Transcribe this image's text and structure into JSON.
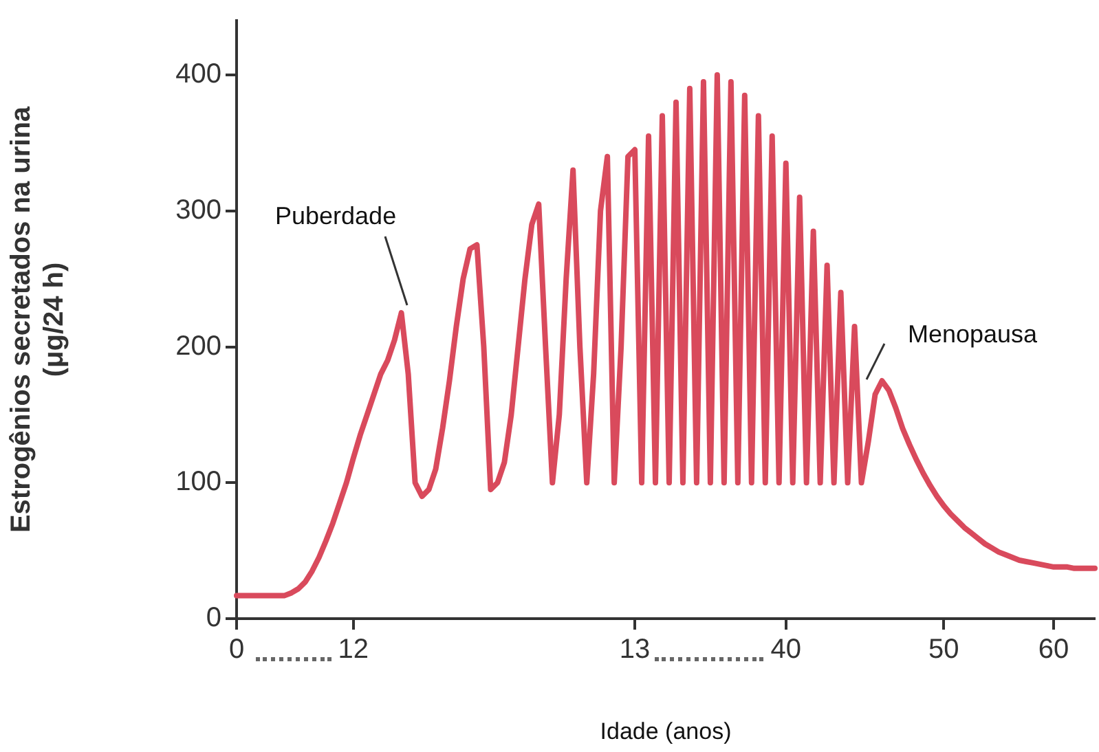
{
  "chart_data": {
    "type": "line",
    "xlabel": "Idade (anos)",
    "ylabel": "Estrogênios secretados na urina\n(μg/24 h)",
    "categories": [
      "0",
      null,
      null,
      null,
      null,
      null,
      null,
      null,
      null,
      null,
      null,
      null,
      null,
      null,
      null,
      null,
      null,
      "12",
      null,
      null,
      null,
      null,
      null,
      null,
      null,
      null,
      null,
      null,
      null,
      null,
      null,
      null,
      null,
      null,
      null,
      null,
      null,
      null,
      null,
      null,
      null,
      null,
      null,
      null,
      null,
      null,
      null,
      null,
      null,
      null,
      null,
      null,
      null,
      null,
      null,
      null,
      null,
      null,
      "13",
      null,
      null,
      null,
      null,
      null,
      null,
      null,
      null,
      null,
      null,
      null,
      null,
      null,
      null,
      null,
      null,
      null,
      null,
      null,
      null,
      null,
      "40",
      null,
      null,
      null,
      null,
      null,
      null,
      null,
      null,
      null,
      null,
      null,
      null,
      null,
      null,
      null,
      null,
      null,
      null,
      null,
      null,
      null,
      null,
      "50",
      null,
      null,
      null,
      null,
      null,
      null,
      null,
      null,
      null,
      null,
      null,
      null,
      null,
      null,
      null,
      "60",
      null,
      null,
      null,
      null,
      null,
      null
    ],
    "series": [
      {
        "color": "#d94a5c",
        "values": [
          17,
          17,
          17,
          17,
          17,
          17,
          17,
          17,
          19,
          22,
          27,
          35,
          45,
          57,
          70,
          85,
          100,
          118,
          135,
          150,
          165,
          180,
          190,
          205,
          225,
          180,
          100,
          90,
          95,
          110,
          140,
          175,
          215,
          250,
          272,
          275,
          200,
          95,
          100,
          115,
          150,
          200,
          250,
          290,
          305,
          200,
          100,
          150,
          250,
          330,
          200,
          100,
          180,
          300,
          340,
          100,
          200,
          340,
          345,
          100,
          355,
          100,
          370,
          100,
          380,
          100,
          390,
          100,
          395,
          100,
          400,
          100,
          395,
          100,
          385,
          100,
          370,
          100,
          355,
          100,
          335,
          100,
          310,
          100,
          285,
          100,
          260,
          100,
          240,
          100,
          215,
          100,
          130,
          165,
          175,
          168,
          155,
          140,
          128,
          117,
          107,
          98,
          90,
          83,
          77,
          72,
          67,
          63,
          59,
          55,
          52,
          49,
          47,
          45,
          43,
          42,
          41,
          40,
          39,
          38,
          38,
          38,
          37,
          37,
          37,
          37
        ]
      }
    ],
    "ylim": [
      0,
      440
    ],
    "yticks": [
      0,
      100,
      200,
      300,
      400
    ],
    "grid": false,
    "legend": false,
    "marker": "none",
    "line_style": "solid",
    "annotations": [
      "Puberdade",
      "Menopausa"
    ]
  }
}
